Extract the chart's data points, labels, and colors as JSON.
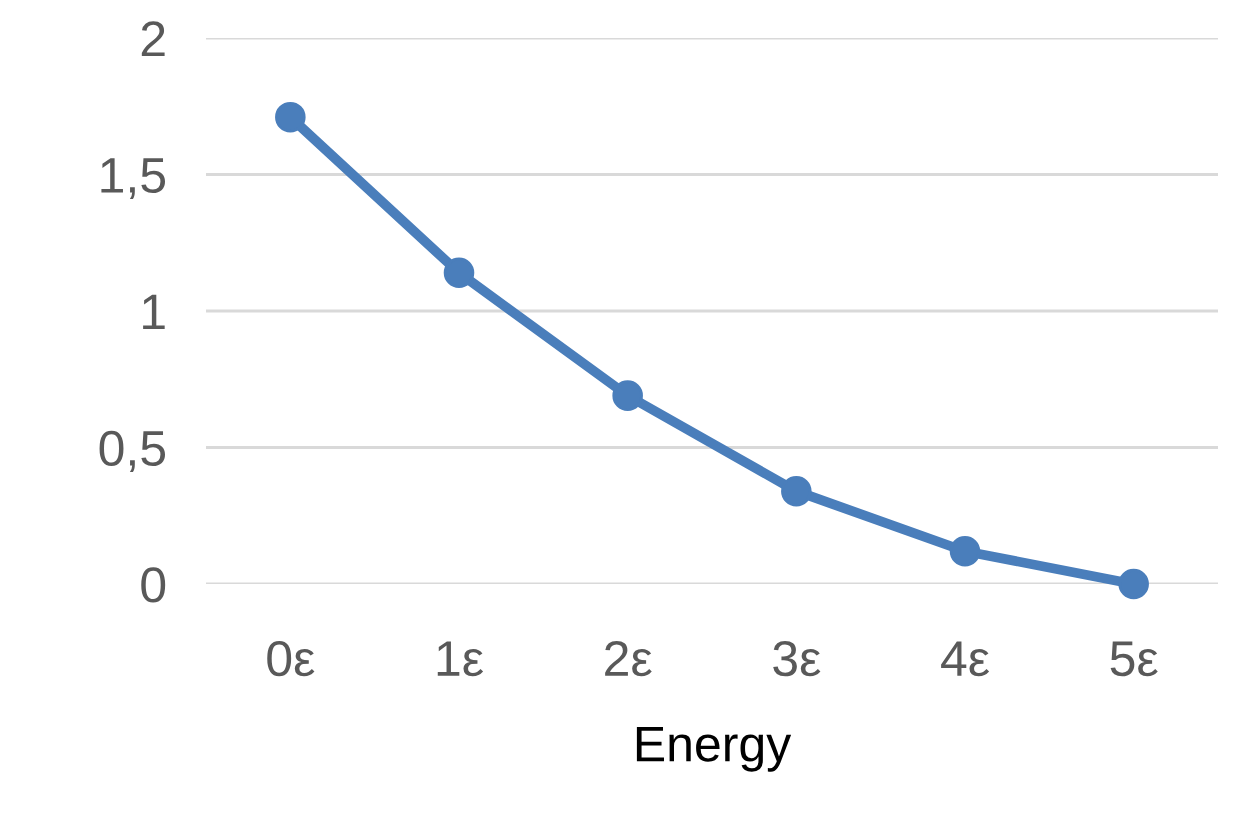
{
  "chart_data": {
    "type": "line",
    "xlabel": "Energy",
    "categories": [
      "0ε",
      "1ε",
      "2ε",
      "3ε",
      "4ε",
      "5ε"
    ],
    "series": [
      {
        "color": "#4a7ebb",
        "values": [
          1.71,
          1.14,
          0.69,
          0.34,
          0.12,
          0
        ]
      }
    ],
    "ylim": [
      0,
      2
    ],
    "yticks": [
      0,
      {
        "value": 0.5,
        "label": "0,5"
      },
      1,
      {
        "value": 1.5,
        "label": "1,5"
      },
      2
    ],
    "grid": "y",
    "marker": "circle",
    "line_style": "solid"
  }
}
